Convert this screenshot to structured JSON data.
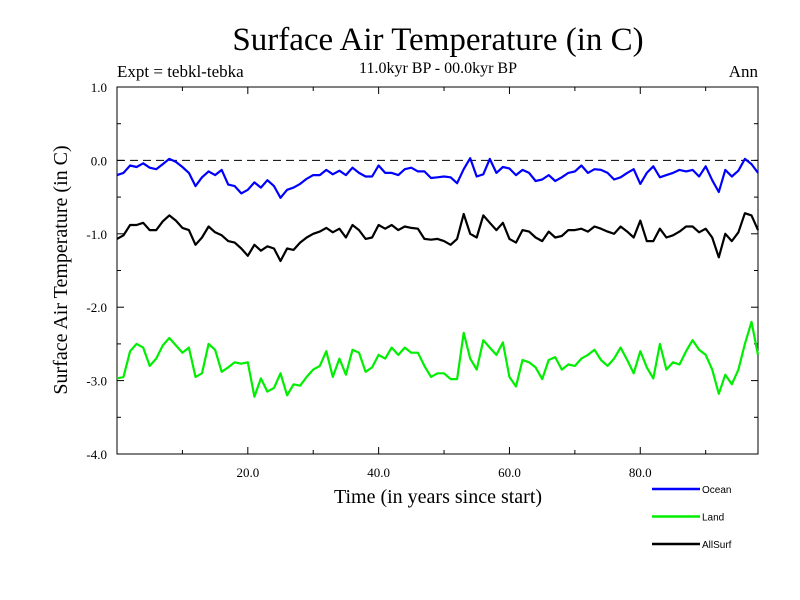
{
  "chart_data": {
    "type": "line",
    "title": "Surface Air Temperature (in C)",
    "subtitle": "11.0kyr BP - 00.0kyr BP",
    "left_label": "Expt = tebkl-tebka",
    "right_label": "Ann",
    "xlabel": "Time (in years since start)",
    "ylabel": "Surface Air Temperature (in C)",
    "xlim": [
      0,
      98
    ],
    "ylim": [
      -4.0,
      1.0
    ],
    "x_ticks": [
      20,
      40,
      60,
      80
    ],
    "x_tick_labels": [
      "20.0",
      "40.0",
      "60.0",
      "80.0"
    ],
    "y_ticks": [
      1.0,
      0.0,
      -1.0,
      -2.0,
      -3.0,
      -4.0
    ],
    "y_tick_labels": [
      "1.0",
      "0.0",
      "-1.0",
      "-2.0",
      "-3.0",
      "-4.0"
    ],
    "reference_line": 0.0,
    "legend_position": "bottom-right",
    "x": [
      0,
      1,
      2,
      3,
      4,
      5,
      6,
      7,
      8,
      9,
      10,
      11,
      12,
      13,
      14,
      15,
      16,
      17,
      18,
      19,
      20,
      21,
      22,
      23,
      24,
      25,
      26,
      27,
      28,
      29,
      30,
      31,
      32,
      33,
      34,
      35,
      36,
      37,
      38,
      39,
      40,
      41,
      42,
      43,
      44,
      45,
      46,
      47,
      48,
      49,
      50,
      51,
      52,
      53,
      54,
      55,
      56,
      57,
      58,
      59,
      60,
      61,
      62,
      63,
      64,
      65,
      66,
      67,
      68,
      69,
      70,
      71,
      72,
      73,
      74,
      75,
      76,
      77,
      78,
      79,
      80,
      81,
      82,
      83,
      84,
      85,
      86,
      87,
      88,
      89,
      90,
      91,
      92,
      93,
      94,
      95,
      96,
      97,
      98
    ],
    "series": [
      {
        "name": "Ocean",
        "color": "#0000ff",
        "values": [
          -0.2,
          -0.17,
          -0.07,
          -0.09,
          -0.04,
          -0.1,
          -0.12,
          -0.05,
          0.02,
          -0.02,
          -0.09,
          -0.17,
          -0.35,
          -0.23,
          -0.15,
          -0.2,
          -0.13,
          -0.33,
          -0.35,
          -0.45,
          -0.4,
          -0.3,
          -0.37,
          -0.27,
          -0.35,
          -0.51,
          -0.4,
          -0.37,
          -0.32,
          -0.25,
          -0.2,
          -0.2,
          -0.13,
          -0.19,
          -0.14,
          -0.2,
          -0.1,
          -0.17,
          -0.22,
          -0.22,
          -0.07,
          -0.17,
          -0.17,
          -0.2,
          -0.12,
          -0.1,
          -0.15,
          -0.15,
          -0.24,
          -0.23,
          -0.22,
          -0.23,
          -0.31,
          -0.12,
          0.03,
          -0.22,
          -0.19,
          0.02,
          -0.17,
          -0.09,
          -0.11,
          -0.2,
          -0.13,
          -0.17,
          -0.28,
          -0.26,
          -0.2,
          -0.28,
          -0.23,
          -0.17,
          -0.15,
          -0.07,
          -0.17,
          -0.12,
          -0.13,
          -0.17,
          -0.26,
          -0.23,
          -0.17,
          -0.12,
          -0.32,
          -0.17,
          -0.08,
          -0.23,
          -0.2,
          -0.17,
          -0.13,
          -0.15,
          -0.13,
          -0.22,
          -0.08,
          -0.27,
          -0.43,
          -0.13,
          -0.22,
          -0.14,
          0.02,
          -0.05,
          -0.17
        ]
      },
      {
        "name": "Land",
        "color": "#00ee00",
        "values": [
          -2.97,
          -2.95,
          -2.6,
          -2.5,
          -2.55,
          -2.8,
          -2.7,
          -2.52,
          -2.42,
          -2.52,
          -2.62,
          -2.55,
          -2.95,
          -2.9,
          -2.5,
          -2.58,
          -2.88,
          -2.82,
          -2.75,
          -2.77,
          -2.75,
          -3.22,
          -2.97,
          -3.15,
          -3.1,
          -2.9,
          -3.2,
          -3.05,
          -3.07,
          -2.95,
          -2.85,
          -2.8,
          -2.6,
          -2.95,
          -2.7,
          -2.92,
          -2.58,
          -2.62,
          -2.88,
          -2.82,
          -2.65,
          -2.7,
          -2.55,
          -2.65,
          -2.55,
          -2.62,
          -2.62,
          -2.8,
          -2.95,
          -2.9,
          -2.9,
          -2.98,
          -2.98,
          -2.35,
          -2.7,
          -2.85,
          -2.45,
          -2.55,
          -2.65,
          -2.48,
          -2.95,
          -3.08,
          -2.72,
          -2.75,
          -2.82,
          -2.98,
          -2.72,
          -2.68,
          -2.85,
          -2.78,
          -2.8,
          -2.7,
          -2.65,
          -2.58,
          -2.72,
          -2.8,
          -2.7,
          -2.55,
          -2.72,
          -2.9,
          -2.6,
          -2.82,
          -2.97,
          -2.5,
          -2.85,
          -2.75,
          -2.78,
          -2.6,
          -2.45,
          -2.58,
          -2.65,
          -2.85,
          -3.18,
          -2.92,
          -3.05,
          -2.85,
          -2.5,
          -2.2,
          -2.65
        ]
      },
      {
        "name": "AllSurf",
        "color": "#000000",
        "values": [
          -1.07,
          -1.02,
          -0.88,
          -0.88,
          -0.85,
          -0.95,
          -0.95,
          -0.83,
          -0.75,
          -0.82,
          -0.92,
          -0.95,
          -1.15,
          -1.05,
          -0.9,
          -0.98,
          -1.02,
          -1.1,
          -1.12,
          -1.2,
          -1.3,
          -1.15,
          -1.23,
          -1.17,
          -1.2,
          -1.37,
          -1.2,
          -1.22,
          -1.12,
          -1.05,
          -1.0,
          -0.97,
          -0.92,
          -0.98,
          -0.93,
          -1.05,
          -0.88,
          -0.95,
          -1.07,
          -1.05,
          -0.88,
          -0.93,
          -0.88,
          -0.95,
          -0.9,
          -0.92,
          -0.93,
          -1.07,
          -1.08,
          -1.07,
          -1.1,
          -1.15,
          -1.07,
          -0.73,
          -1.0,
          -1.05,
          -0.75,
          -0.85,
          -0.95,
          -0.85,
          -1.07,
          -1.12,
          -0.95,
          -0.97,
          -1.05,
          -1.1,
          -0.97,
          -1.05,
          -1.03,
          -0.95,
          -0.95,
          -0.93,
          -0.97,
          -0.9,
          -0.93,
          -0.97,
          -1.0,
          -0.9,
          -0.97,
          -1.05,
          -0.82,
          -1.1,
          -1.1,
          -0.93,
          -1.05,
          -1.02,
          -0.97,
          -0.9,
          -0.9,
          -0.98,
          -0.93,
          -1.05,
          -1.32,
          -1.0,
          -1.1,
          -0.98,
          -0.72,
          -0.75,
          -0.95
        ]
      }
    ]
  }
}
